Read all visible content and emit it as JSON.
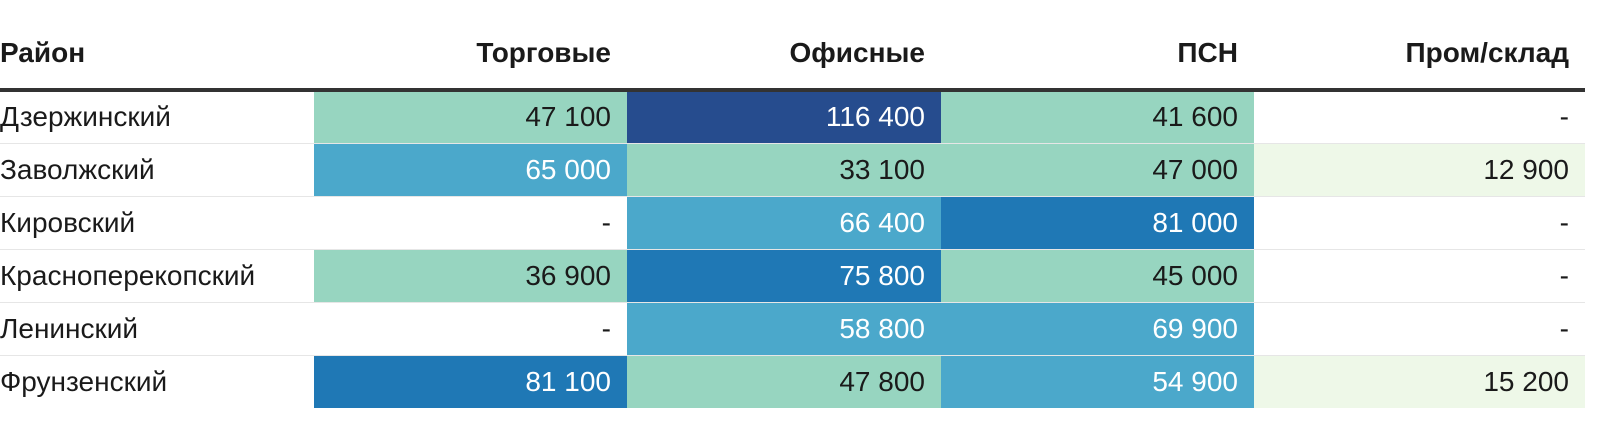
{
  "chart_data": {
    "type": "table",
    "columns": [
      "Район",
      "Торговые",
      "Офисные",
      "ПСН",
      "Пром/склад"
    ],
    "rows": [
      {
        "district": "Дзержинский",
        "values": [
          "47 100",
          "116 400",
          "41 600",
          "-"
        ]
      },
      {
        "district": "Заволжский",
        "values": [
          "65 000",
          "33 100",
          "47 000",
          "12 900"
        ]
      },
      {
        "district": "Кировский",
        "values": [
          "-",
          "66 400",
          "81 000",
          "-"
        ]
      },
      {
        "district": "Красноперекопский",
        "values": [
          "36 900",
          "75 800",
          "45 000",
          "-"
        ]
      },
      {
        "district": "Ленинский",
        "values": [
          "-",
          "58 800",
          "69 900",
          "-"
        ]
      },
      {
        "district": "Фрунзенский",
        "values": [
          "81 100",
          "47 800",
          "54 900",
          "15 200"
        ]
      }
    ],
    "color_scale": [
      {
        "max": 20000,
        "bg": "#eef8e8",
        "fg": "#1a1a1a"
      },
      {
        "max": 50000,
        "bg": "#97d5c0",
        "fg": "#1a1a1a"
      },
      {
        "max": 70000,
        "bg": "#4ba8cb",
        "fg": "#ffffff"
      },
      {
        "max": 100000,
        "bg": "#1f78b5",
        "fg": "#ffffff"
      },
      {
        "max": 1000000,
        "bg": "#264c8e",
        "fg": "#ffffff"
      }
    ],
    "empty_cell": {
      "bg": "#ffffff",
      "fg": "#1a1a1a"
    }
  }
}
